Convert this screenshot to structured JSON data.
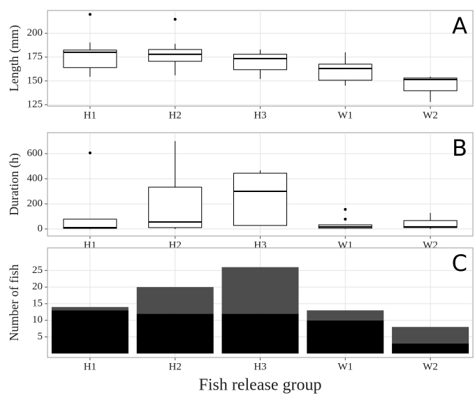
{
  "chart_data": [
    {
      "type": "box",
      "label": "A",
      "ylabel": "Length (mm)",
      "categories": [
        "H1",
        "H2",
        "H3",
        "W1",
        "W2"
      ],
      "stats": [
        {
          "low": 154.4,
          "q1": 164,
          "median": 180.1,
          "q3": 182.4,
          "high": 190.4,
          "outliers": [
            219.9
          ]
        },
        {
          "low": 155.9,
          "q1": 170.6,
          "median": 178,
          "q3": 183,
          "high": 189,
          "outliers": [
            214.7
          ]
        },
        {
          "low": 152,
          "q1": 161.8,
          "median": 173.5,
          "q3": 178,
          "high": 183
        },
        {
          "low": 145,
          "q1": 150.7,
          "median": 163,
          "q3": 167.6,
          "high": 180
        },
        {
          "low": 128,
          "q1": 139.7,
          "median": 151.5,
          "q3": 153,
          "high": 154.5
        }
      ],
      "ylim": [
        123.5,
        224
      ],
      "yticks": [
        125,
        150,
        175,
        200
      ],
      "grid": true
    },
    {
      "type": "box",
      "label": "B",
      "ylabel": "Duration (h)",
      "categories": [
        "H1",
        "H2",
        "H3",
        "W1",
        "W2"
      ],
      "stats": [
        {
          "low": 0,
          "q1": 5,
          "median": 11,
          "q3": 78,
          "high": 78,
          "outliers": [
            606
          ]
        },
        {
          "low": 0,
          "q1": 11,
          "median": 56,
          "q3": 333,
          "high": 700
        },
        {
          "low": 28,
          "q1": 28,
          "median": 300,
          "q3": 444,
          "high": 467
        },
        {
          "low": 0,
          "q1": 6,
          "median": 17,
          "q3": 33,
          "high": 33,
          "outliers": [
            78,
            156
          ]
        },
        {
          "low": 0,
          "q1": 11,
          "median": 17,
          "q3": 67,
          "high": 128
        }
      ],
      "ylim": [
        -56,
        767
      ],
      "yticks": [
        0,
        200,
        400,
        600
      ],
      "grid": true
    },
    {
      "type": "stacked_bar",
      "label": "C",
      "ylabel": "Number of fish",
      "xlabel": "Fish release group",
      "categories": [
        "H1",
        "H2",
        "H3",
        "W1",
        "W2"
      ],
      "series": [
        {
          "color": "#000000",
          "values": [
            13,
            12,
            12,
            10,
            3
          ]
        },
        {
          "color": "#4d4d4d",
          "values": [
            1,
            8,
            14,
            3,
            5
          ]
        }
      ],
      "ylim": [
        -1.2,
        31.8
      ],
      "yticks": [
        5,
        10,
        15,
        20,
        25
      ],
      "grid": true
    }
  ]
}
